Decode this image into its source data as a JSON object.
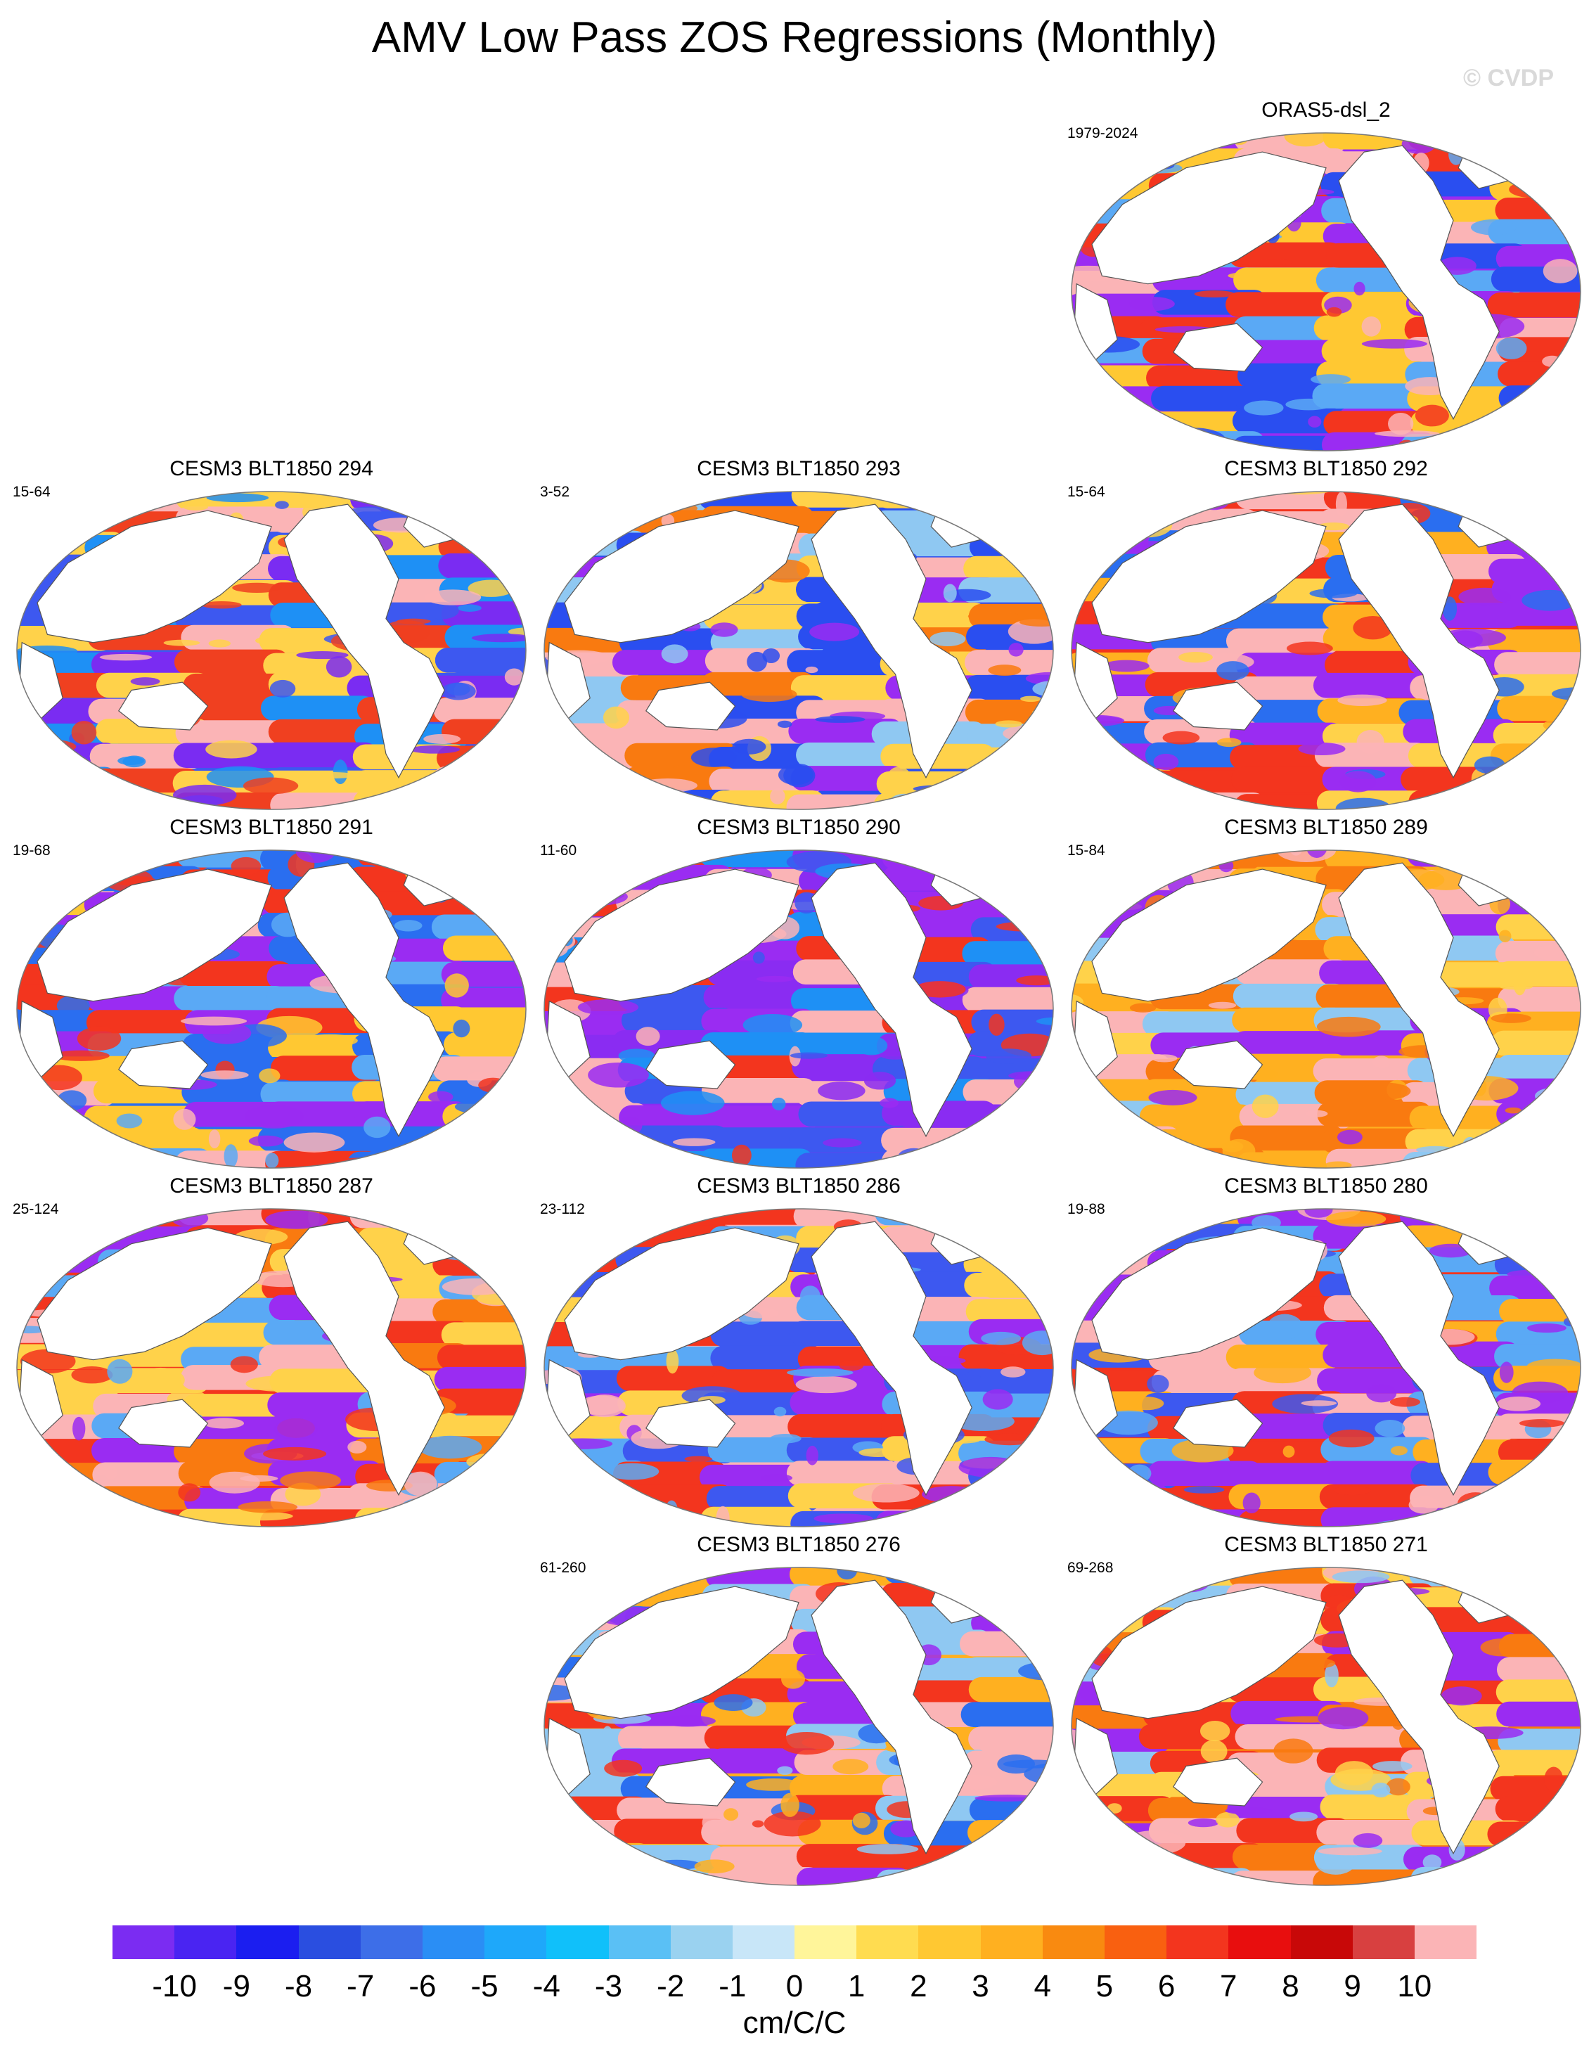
{
  "title": "AMV Low Pass ZOS Regressions (Monthly)",
  "watermark": "© CVDP",
  "panels": [
    {
      "title": "ORAS5-dsl_2",
      "years": "1979-2024",
      "row": 0,
      "col": 2,
      "palette": [
        "#9a2cf2",
        "#2a4ef0",
        "#f3351e",
        "#fbb4b6",
        "#5aa9f5",
        "#ffc832"
      ]
    },
    {
      "title": "CESM3 BLT1850 294",
      "years": "15-64",
      "row": 1,
      "col": 0,
      "palette": [
        "#3d58f0",
        "#7a2cf2",
        "#fbb4b6",
        "#f04020",
        "#1e90f5",
        "#ffd24a"
      ]
    },
    {
      "title": "CESM3 BLT1850 293",
      "years": "3-52",
      "row": 1,
      "col": 1,
      "palette": [
        "#2a4ef0",
        "#9a2cf2",
        "#f97a10",
        "#fbb4b6",
        "#8fc8f2",
        "#ffd24a"
      ]
    },
    {
      "title": "CESM3 BLT1850 292",
      "years": "15-64",
      "row": 1,
      "col": 2,
      "palette": [
        "#f3351e",
        "#fbb4b6",
        "#ffb020",
        "#2a6ef0",
        "#9a2cf2",
        "#ffd24a"
      ]
    },
    {
      "title": "CESM3 BLT1850 291",
      "years": "19-68",
      "row": 2,
      "col": 0,
      "palette": [
        "#2a6ef0",
        "#f3351e",
        "#fbb4b6",
        "#5aa9f5",
        "#ffc832",
        "#9a2cf2"
      ]
    },
    {
      "title": "CESM3 BLT1850 290",
      "years": "11-60",
      "row": 2,
      "col": 1,
      "palette": [
        "#8a2cf2",
        "#fbb4b6",
        "#3d58f0",
        "#f3351e",
        "#1e90f5",
        "#9a2cf2"
      ]
    },
    {
      "title": "CESM3 BLT1850 289",
      "years": "15-84",
      "row": 2,
      "col": 2,
      "palette": [
        "#ffb020",
        "#ffd24a",
        "#8fc8f2",
        "#9a2cf2",
        "#fbb4b6",
        "#f97a10"
      ]
    },
    {
      "title": "CESM3 BLT1850 287",
      "years": "25-124",
      "row": 3,
      "col": 0,
      "palette": [
        "#f3351e",
        "#fbb4b6",
        "#ffd24a",
        "#9a2cf2",
        "#f97a10",
        "#5aa9f5"
      ]
    },
    {
      "title": "CESM3 BLT1850 286",
      "years": "23-112",
      "row": 3,
      "col": 1,
      "palette": [
        "#fbb4b6",
        "#3d58f0",
        "#f3351e",
        "#9a2cf2",
        "#ffd24a",
        "#5aa9f5"
      ]
    },
    {
      "title": "CESM3 BLT1850 280",
      "years": "19-88",
      "row": 3,
      "col": 2,
      "palette": [
        "#f3351e",
        "#3d58f0",
        "#fbb4b6",
        "#9a2cf2",
        "#ffb020",
        "#5aa9f5"
      ]
    },
    {
      "title": "CESM3 BLT1850 276",
      "years": "61-260",
      "row": 4,
      "col": 1,
      "palette": [
        "#ffb020",
        "#2a6ef0",
        "#fbb4b6",
        "#f3351e",
        "#8fc8f2",
        "#9a2cf2"
      ]
    },
    {
      "title": "CESM3 BLT1850 271",
      "years": "69-268",
      "row": 4,
      "col": 2,
      "palette": [
        "#f97a10",
        "#ffd24a",
        "#f3351e",
        "#9a2cf2",
        "#fbb4b6",
        "#8fc8f2"
      ]
    }
  ],
  "colorbar": {
    "colors": [
      "#7b2cf2",
      "#4a24f2",
      "#1b1ef0",
      "#2a4ee0",
      "#3d6ee8",
      "#2a8ef5",
      "#1ea8fa",
      "#10c0fa",
      "#5ac0f5",
      "#9ad2f0",
      "#c8e6f8",
      "#fff59a",
      "#ffdc50",
      "#ffc832",
      "#ffb020",
      "#f98a10",
      "#f96010",
      "#f3351e",
      "#e80e0e",
      "#c80808",
      "#d84040",
      "#fbb4b6"
    ],
    "ticks": [
      "-10",
      "-9",
      "-8",
      "-7",
      "-6",
      "-5",
      "-4",
      "-3",
      "-2",
      "-1",
      "0",
      "1",
      "2",
      "3",
      "4",
      "5",
      "6",
      "7",
      "8",
      "9",
      "10"
    ],
    "unit": "cm/C/C"
  }
}
